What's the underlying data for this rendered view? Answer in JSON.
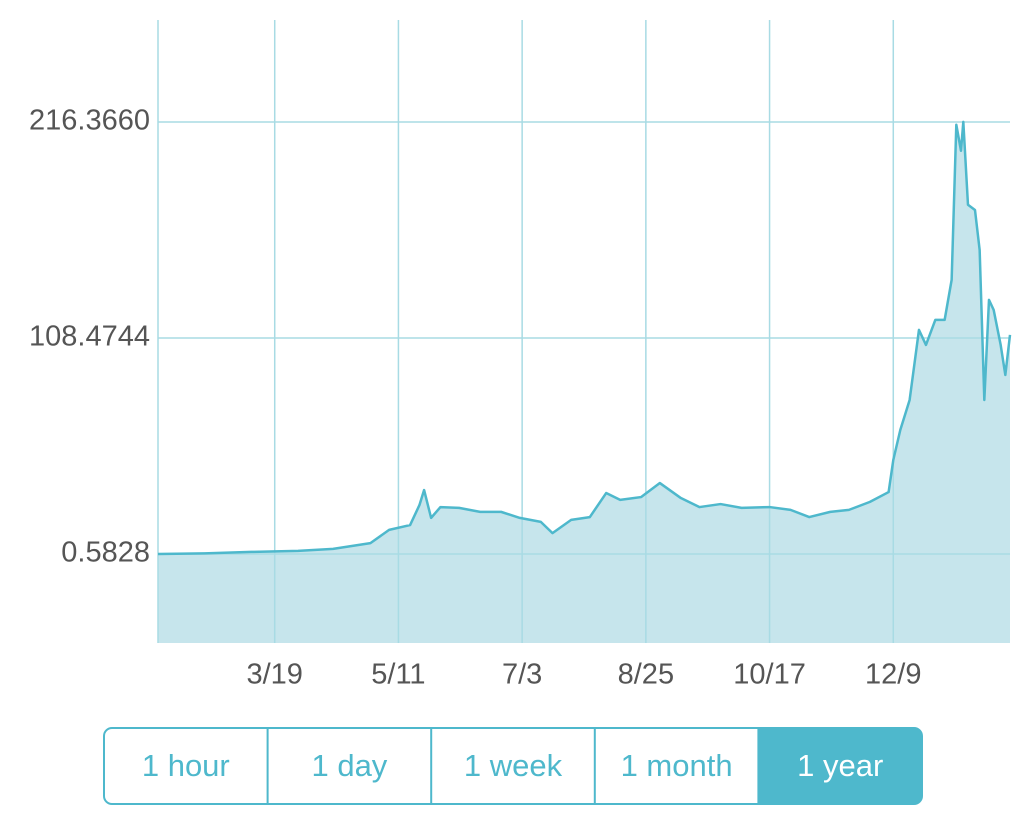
{
  "chart_data": {
    "type": "area",
    "x": [
      0,
      20,
      40,
      60,
      75,
      91,
      99,
      108,
      112,
      114,
      117,
      121,
      129,
      138,
      147,
      155,
      164,
      169,
      177,
      185,
      192,
      198,
      207,
      215,
      224,
      232,
      241,
      250,
      262,
      271,
      279,
      288,
      296,
      305,
      313,
      315,
      318,
      322,
      326,
      329,
      333,
      337,
      340,
      342,
      344,
      345,
      347,
      350,
      352,
      354,
      356,
      358,
      361,
      363,
      365
    ],
    "series": [
      {
        "color": "#4eb8cc",
        "fill": "#c6e5ec",
        "values": [
          0.58,
          0.9,
          1.6,
          2.1,
          3.1,
          6,
          12.6,
          15,
          25,
          32.5,
          18.6,
          24,
          23.6,
          21.6,
          21.6,
          18.6,
          16.6,
          11,
          17.6,
          19,
          31,
          27.6,
          29,
          36,
          28.5,
          24,
          25.5,
          23.6,
          24,
          22.6,
          19,
          21.6,
          22.6,
          26.6,
          31.5,
          47.5,
          62.5,
          77.5,
          112.5,
          105,
          117.5,
          117.5,
          137.5,
          215,
          202,
          216.4,
          175,
          172.4,
          152.4,
          77.5,
          127.5,
          122.5,
          105,
          90,
          110
        ]
      }
    ],
    "xlim": [
      0,
      365
    ],
    "xticks": [
      {
        "value": 50,
        "label": "3/19"
      },
      {
        "value": 103,
        "label": "5/11"
      },
      {
        "value": 156,
        "label": "7/3"
      },
      {
        "value": 209,
        "label": "8/25"
      },
      {
        "value": 262,
        "label": "10/17"
      },
      {
        "value": 315,
        "label": "12/9"
      }
    ],
    "ylim": [
      -43.9,
      267.3
    ],
    "yticks": [
      0.5828,
      108.4744,
      {
        "value": 216.366,
        "label": "216.3660"
      }
    ],
    "grid": true,
    "grid_color": "#a8dbe4"
  },
  "range_buttons": {
    "options": [
      "1 hour",
      "1 day",
      "1 week",
      "1 month",
      "1 year"
    ],
    "selected": 4
  }
}
